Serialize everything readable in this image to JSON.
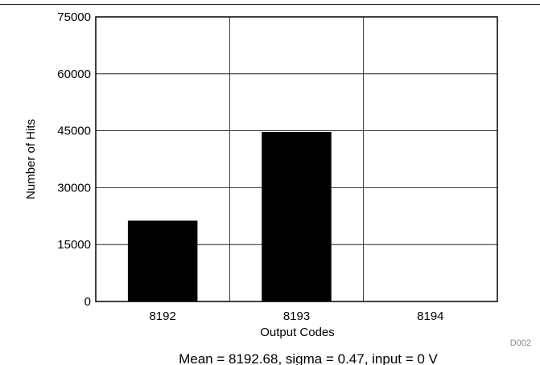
{
  "chart_data": {
    "type": "bar",
    "categories": [
      "8192",
      "8193",
      "8194"
    ],
    "values": [
      21300,
      44700,
      0
    ],
    "xlabel": "Output Codes",
    "ylabel": "Number of Hits",
    "ylim": [
      0,
      75000
    ],
    "yticks": [
      0,
      15000,
      30000,
      45000,
      60000,
      75000
    ],
    "grid": true,
    "bar_color": "#000000",
    "caption": "Mean = 8192.68, sigma = 0.47, input = 0 V",
    "figure_id": "D002"
  }
}
